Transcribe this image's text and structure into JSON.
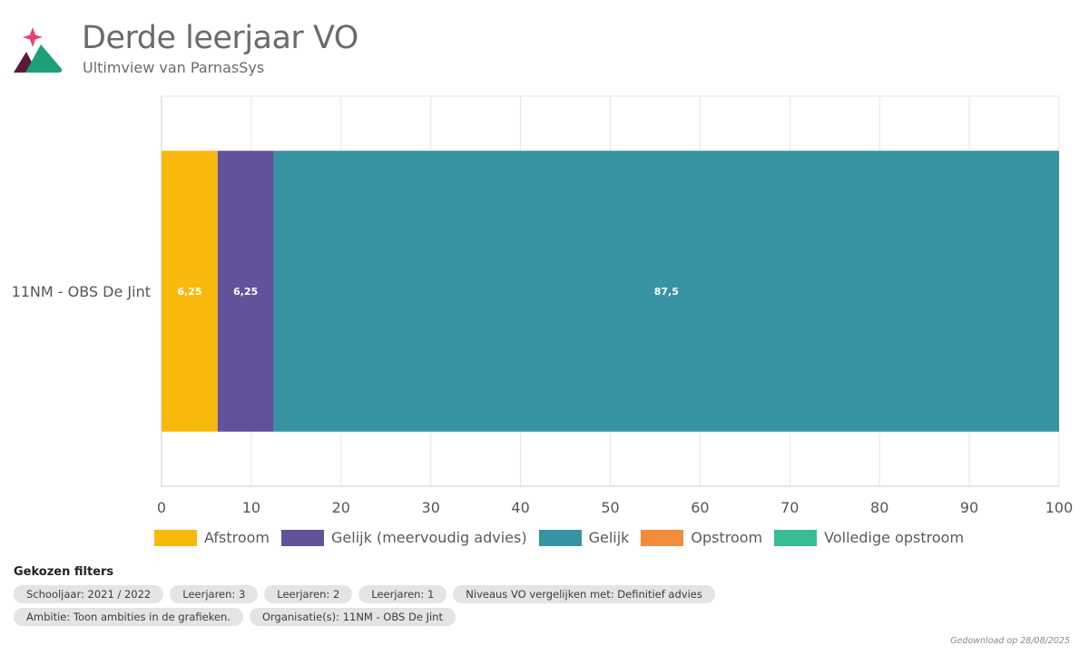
{
  "header": {
    "title": "Derde leerjaar VO",
    "subtitle": "Ultimview van ParnasSys"
  },
  "brand_colors": {
    "logo_star": "#e8436f",
    "logo_dark_mountain": "#5a1a3a",
    "logo_green_mountain": "#1ca07a"
  },
  "chart_data": {
    "type": "bar",
    "orientation": "horizontal",
    "stacked": true,
    "categories": [
      "11NM - OBS De Jint"
    ],
    "series": [
      {
        "name": "Afstroom",
        "values": [
          6.25
        ],
        "labels": [
          "6,25"
        ],
        "color": "#f9b90c"
      },
      {
        "name": "Gelijk (meervoudig advies)",
        "values": [
          6.25
        ],
        "labels": [
          "6,25"
        ],
        "color": "#62519b"
      },
      {
        "name": "Gelijk",
        "values": [
          87.5
        ],
        "labels": [
          "87,5"
        ],
        "color": "#3793a2"
      },
      {
        "name": "Opstroom",
        "values": [
          0
        ],
        "labels": [
          ""
        ],
        "color": "#f28b3c"
      },
      {
        "name": "Volledige opstroom",
        "values": [
          0
        ],
        "labels": [
          ""
        ],
        "color": "#37bc96"
      }
    ],
    "xlim": [
      0,
      100
    ],
    "xticks": [
      0,
      10,
      20,
      30,
      40,
      50,
      60,
      70,
      80,
      90,
      100
    ],
    "grid": true,
    "legend": "bottom"
  },
  "filters": {
    "title": "Gekozen filters",
    "chips": [
      "Schooljaar: 2021 / 2022",
      "Leerjaren: 3",
      "Leerjaren: 2",
      "Leerjaren: 1",
      "Niveaus VO vergelijken met: Definitief advies",
      "Ambitie: Toon ambities in de grafieken.",
      "Organisatie(s): 11NM - OBS De Jint"
    ]
  },
  "footer": {
    "downloaded": "Gedownload op 28/08/2025"
  }
}
